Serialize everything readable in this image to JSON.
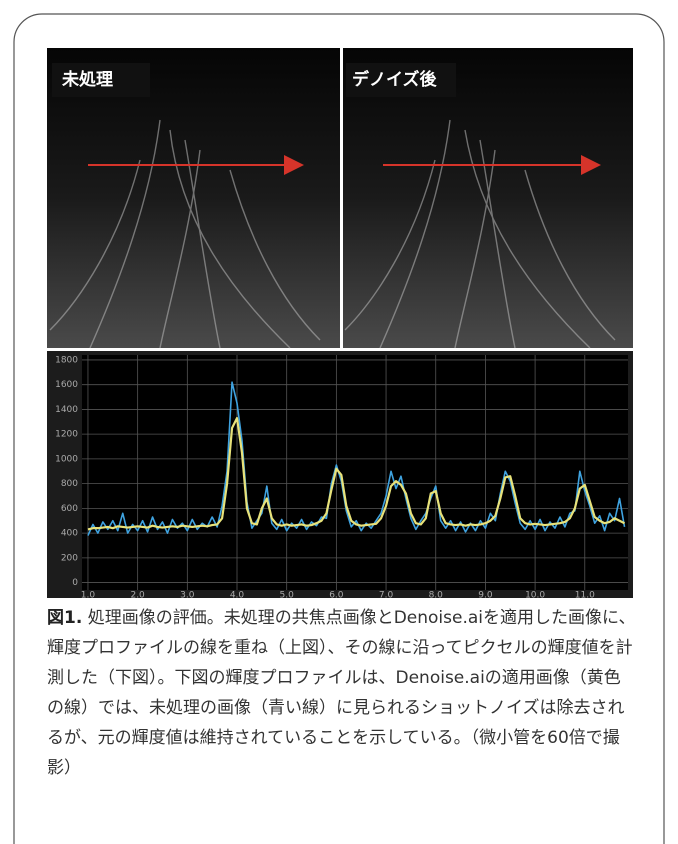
{
  "images": [
    {
      "label": "未処理"
    },
    {
      "label": "デノイズ後"
    }
  ],
  "chart_data": {
    "type": "line",
    "x": [
      1.0,
      1.1,
      1.2,
      1.3,
      1.4,
      1.5,
      1.6,
      1.7,
      1.8,
      1.9,
      2.0,
      2.1,
      2.2,
      2.3,
      2.4,
      2.5,
      2.6,
      2.7,
      2.8,
      2.9,
      3.0,
      3.1,
      3.2,
      3.3,
      3.4,
      3.5,
      3.6,
      3.7,
      3.8,
      3.9,
      4.0,
      4.1,
      4.2,
      4.3,
      4.4,
      4.5,
      4.6,
      4.7,
      4.8,
      4.9,
      5.0,
      5.1,
      5.2,
      5.3,
      5.4,
      5.5,
      5.6,
      5.7,
      5.8,
      5.9,
      6.0,
      6.1,
      6.2,
      6.3,
      6.4,
      6.5,
      6.6,
      6.7,
      6.8,
      6.9,
      7.0,
      7.1,
      7.2,
      7.3,
      7.4,
      7.5,
      7.6,
      7.7,
      7.8,
      7.9,
      8.0,
      8.1,
      8.2,
      8.3,
      8.4,
      8.5,
      8.6,
      8.7,
      8.8,
      8.9,
      9.0,
      9.1,
      9.2,
      9.3,
      9.4,
      9.5,
      9.6,
      9.7,
      9.8,
      9.9,
      10.0,
      10.1,
      10.2,
      10.3,
      10.4,
      10.5,
      10.6,
      10.7,
      10.8,
      10.9,
      11.0,
      11.1,
      11.2,
      11.3,
      11.4,
      11.5,
      11.6,
      11.7,
      11.8
    ],
    "series": [
      {
        "color": "#3fa3e0",
        "values": [
          380,
          470,
          400,
          490,
          430,
          500,
          420,
          560,
          400,
          470,
          420,
          500,
          410,
          530,
          430,
          490,
          400,
          510,
          440,
          480,
          420,
          510,
          430,
          480,
          450,
          530,
          450,
          620,
          900,
          1620,
          1450,
          1150,
          650,
          440,
          500,
          560,
          780,
          480,
          430,
          510,
          420,
          480,
          440,
          510,
          430,
          490,
          460,
          530,
          520,
          800,
          950,
          820,
          580,
          450,
          500,
          420,
          480,
          440,
          500,
          560,
          700,
          900,
          760,
          860,
          680,
          520,
          430,
          500,
          560,
          680,
          780,
          500,
          440,
          500,
          420,
          490,
          410,
          480,
          420,
          500,
          440,
          560,
          500,
          720,
          900,
          820,
          640,
          480,
          430,
          500,
          430,
          510,
          420,
          490,
          440,
          530,
          450,
          560,
          580,
          900,
          740,
          620,
          480,
          540,
          420,
          560,
          500,
          680,
          450
        ]
      },
      {
        "color": "#e8e27a",
        "values": [
          430,
          440,
          440,
          445,
          450,
          440,
          455,
          450,
          445,
          450,
          455,
          450,
          445,
          460,
          450,
          445,
          450,
          455,
          450,
          460,
          455,
          450,
          455,
          460,
          455,
          465,
          470,
          520,
          800,
          1250,
          1330,
          1050,
          600,
          480,
          470,
          600,
          680,
          520,
          470,
          460,
          470,
          460,
          465,
          470,
          460,
          465,
          480,
          500,
          560,
          750,
          920,
          870,
          620,
          500,
          470,
          460,
          465,
          470,
          475,
          520,
          620,
          780,
          820,
          790,
          720,
          560,
          480,
          470,
          520,
          720,
          740,
          560,
          480,
          470,
          465,
          470,
          460,
          470,
          465,
          470,
          480,
          500,
          540,
          680,
          850,
          860,
          700,
          520,
          480,
          470,
          475,
          470,
          465,
          470,
          475,
          480,
          490,
          520,
          600,
          760,
          790,
          660,
          530,
          500,
          480,
          490,
          520,
          500,
          480
        ]
      }
    ],
    "xlim": [
      0.88,
      11.87
    ],
    "xticks": [
      {
        "value": 1,
        "label": "1.0"
      },
      {
        "value": 2,
        "label": "2.0"
      },
      {
        "value": 3,
        "label": "3.0"
      },
      {
        "value": 4,
        "label": "4.0"
      },
      {
        "value": 5,
        "label": "5.0"
      },
      {
        "value": 6,
        "label": "6.0"
      },
      {
        "value": 7,
        "label": "7.0"
      },
      {
        "value": 8,
        "label": "8.0"
      },
      {
        "value": 9,
        "label": "9.0"
      },
      {
        "value": 10,
        "label": "10.0"
      },
      {
        "value": 11,
        "label": "11.0"
      }
    ],
    "ylim": [
      -60,
      1840
    ],
    "yticks": [
      0,
      200,
      400,
      600,
      800,
      1000,
      1200,
      1400,
      1600,
      1800
    ],
    "grid": true
  },
  "caption": {
    "label": "図1.",
    "text": " 処理画像の評価。未処理の共焦点画像とDenoise.aiを適用した画像に、輝度プロファイルの線を重ね（上図）、その線に沿ってピクセルの輝度値を計測した（下図）。下図の輝度プロファイルは、Denoise.aiの適用画像（黄色の線）では、未処理の画像（青い線）に見られるショットノイズは除去されるが、元の輝度値は維持されていることを示している。（微小管を60倍で撮影）"
  }
}
